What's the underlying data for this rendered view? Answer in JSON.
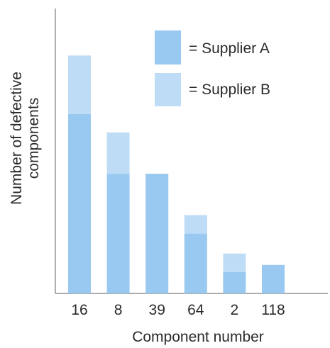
{
  "chart_data": {
    "type": "bar",
    "stacked": true,
    "title": "",
    "xlabel": "Component number",
    "ylabel": "Number of defective\ncomponents",
    "categories": [
      "16",
      "8",
      "39",
      "64",
      "2",
      "118"
    ],
    "series": [
      {
        "name": "Supplier A",
        "color": "#99c9f0",
        "values": [
          252,
          168,
          168,
          84,
          30,
          40
        ]
      },
      {
        "name": "Supplier B",
        "color": "#bfdcf7",
        "values": [
          82,
          58,
          0,
          26,
          26,
          0
        ]
      }
    ],
    "ylim": [
      0,
      400
    ],
    "y_ticks_shown": false,
    "grid": false,
    "legend_placement": "top-right",
    "legend_labels": [
      "= Supplier A",
      "= Supplier B"
    ]
  }
}
